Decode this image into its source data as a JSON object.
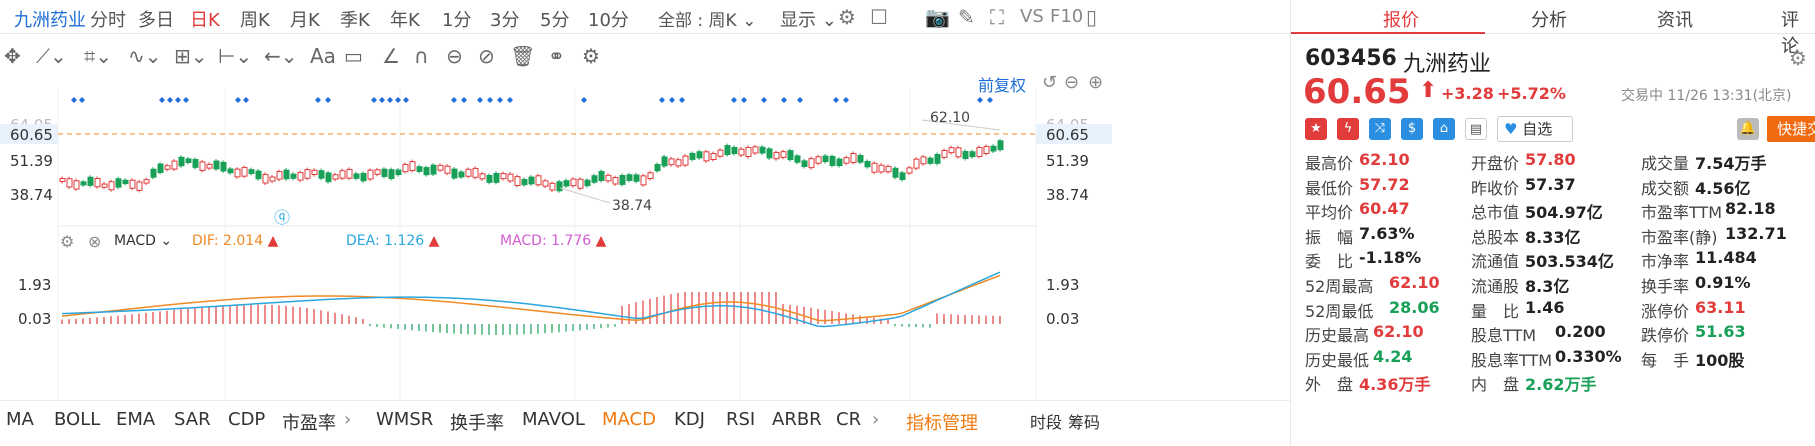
{
  "topbar": {
    "stock_name": "九洲药业",
    "periods": [
      "分时",
      "多日",
      "日K",
      "周K",
      "月K",
      "季K",
      "年K",
      "1分",
      "3分",
      "5分",
      "10分"
    ],
    "active_period": "日K",
    "range_select": "全部 : 周K",
    "display_label": "显示",
    "vs_label": "VS",
    "f10_label": "F10"
  },
  "chart": {
    "adjust_label": "前复权",
    "price_levels": [
      "64.05",
      "60.65",
      "51.39",
      "38.74"
    ],
    "right_price_levels": [
      "64.05",
      "60.65",
      "51.39",
      "38.74"
    ],
    "current_price_tag": "60.65",
    "high_annotation": "62.10",
    "low_annotation": "38.74",
    "macd_label": "MACD",
    "dif_label": "DIF: 2.014",
    "dea_label": "DEA: 1.126",
    "macd_value_label": "MACD: 1.776",
    "macd_levels": [
      "1.93",
      "0.03"
    ],
    "right_macd_levels": [
      "1.93",
      "0.03"
    ],
    "colors": {
      "up": "#e23b3b",
      "down": "#18a058",
      "dif": "#f08a24",
      "dea": "#2aa6e0",
      "dashed": "#f08a24",
      "diamond": "#1e6fd9"
    }
  },
  "indicators": {
    "items": [
      "MA",
      "BOLL",
      "EMA",
      "SAR",
      "CDP",
      "市盈率",
      "WMSR",
      "换手率",
      "MAVOL",
      "MACD",
      "KDJ",
      "RSI",
      "ARBR",
      "CR"
    ],
    "active": "MACD",
    "manage_label": "指标管理",
    "right_items": [
      "时段",
      "筹码"
    ]
  },
  "panel": {
    "tabs": [
      "报价",
      "分析",
      "资讯",
      "评论"
    ],
    "active_tab": "报价",
    "code": "603456",
    "name": "九洲药业",
    "price": "60.65",
    "change": "+3.28",
    "change_pct": "+5.72%",
    "status": "交易中 11/26 13:31(北京)",
    "watch_label": "自选",
    "quick_trade_label": "快捷交易",
    "stats": [
      [
        {
          "k": "最高价",
          "v": "62.10",
          "c": "red"
        },
        {
          "k": "开盘价",
          "v": "57.80",
          "c": "red"
        },
        {
          "k": "成交量",
          "v": "7.54万手",
          "c": "dark"
        }
      ],
      [
        {
          "k": "最低价",
          "v": "57.72",
          "c": "red"
        },
        {
          "k": "昨收价",
          "v": "57.37",
          "c": "dark"
        },
        {
          "k": "成交额",
          "v": "4.56亿",
          "c": "dark"
        }
      ],
      [
        {
          "k": "平均价",
          "v": "60.47",
          "c": "red"
        },
        {
          "k": "总市值",
          "v": "504.97亿",
          "c": "dark"
        },
        {
          "k": "市盈率TTM",
          "v": "82.18",
          "c": "dark"
        }
      ],
      [
        {
          "k": "振　幅",
          "v": "7.63%",
          "c": "dark"
        },
        {
          "k": "总股本",
          "v": "8.33亿",
          "c": "dark"
        },
        {
          "k": "市盈率(静)",
          "v": "132.71",
          "c": "dark"
        }
      ],
      [
        {
          "k": "委　比",
          "v": "-1.18%",
          "c": "dark"
        },
        {
          "k": "流通值",
          "v": "503.534亿",
          "c": "dark"
        },
        {
          "k": "市净率",
          "v": "11.484",
          "c": "dark"
        }
      ],
      [
        {
          "k": "52周最高",
          "v": "62.10",
          "c": "red"
        },
        {
          "k": "流通股",
          "v": "8.3亿",
          "c": "dark"
        },
        {
          "k": "换手率",
          "v": "0.91%",
          "c": "dark"
        }
      ],
      [
        {
          "k": "52周最低",
          "v": "28.06",
          "c": "green"
        },
        {
          "k": "量　比",
          "v": "1.46",
          "c": "dark"
        },
        {
          "k": "涨停价",
          "v": "63.11",
          "c": "red"
        }
      ],
      [
        {
          "k": "历史最高",
          "v": "62.10",
          "c": "red"
        },
        {
          "k": "股息TTM",
          "v": "0.200",
          "c": "dark"
        },
        {
          "k": "跌停价",
          "v": "51.63",
          "c": "green"
        }
      ],
      [
        {
          "k": "历史最低",
          "v": "4.24",
          "c": "green"
        },
        {
          "k": "股息率TTM",
          "v": "0.330%",
          "c": "dark"
        },
        {
          "k": "每　手",
          "v": "100股",
          "c": "dark"
        }
      ],
      [
        {
          "k": "外　盘",
          "v": "4.36万手",
          "c": "red"
        },
        {
          "k": "内　盘",
          "v": "2.62万手",
          "c": "green"
        },
        {
          "k": "",
          "v": "",
          "c": "dark"
        }
      ]
    ]
  }
}
